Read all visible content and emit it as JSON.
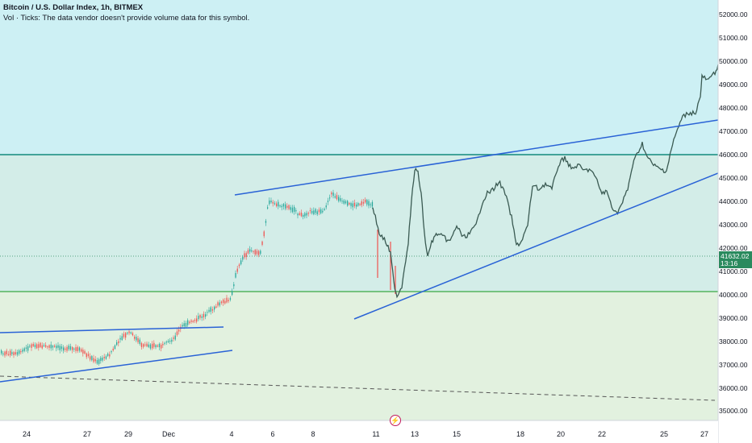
{
  "header": {
    "symbol_title": "Bitcoin / U.S. Dollar Index, 1h, BITMEX",
    "volume_note": "Vol · Ticks: The data vendor doesn't provide volume data for this symbol."
  },
  "price_axis": {
    "labels": [
      "52000.00",
      "51000.00",
      "50000.00",
      "49000.00",
      "48000.00",
      "47000.00",
      "46000.00",
      "45000.00",
      "44000.00",
      "43000.00",
      "42000.00",
      "41000.00",
      "40000.00",
      "39000.00",
      "38000.00",
      "37000.00",
      "36000.00",
      "35000.00"
    ],
    "current_price": "41632.02",
    "countdown": "13:16"
  },
  "time_axis": {
    "labels": [
      "24",
      "27",
      "29",
      "Dec",
      "4",
      "6",
      "8",
      "11",
      "13",
      "15",
      "18",
      "20",
      "22",
      "25",
      "27"
    ]
  },
  "colors": {
    "upper_zone": "#cdf0f4",
    "lower_zone": "#e2f1df",
    "teal_level": "#138a7d",
    "green_level": "#3aa845",
    "trendline": "#2962d6",
    "price_line": "#3a5a52",
    "candle_up": "#26a69a",
    "candle_down": "#ef5350",
    "badge": "#2a8a5e"
  },
  "icons": {
    "event_marker": "flash-icon"
  }
}
